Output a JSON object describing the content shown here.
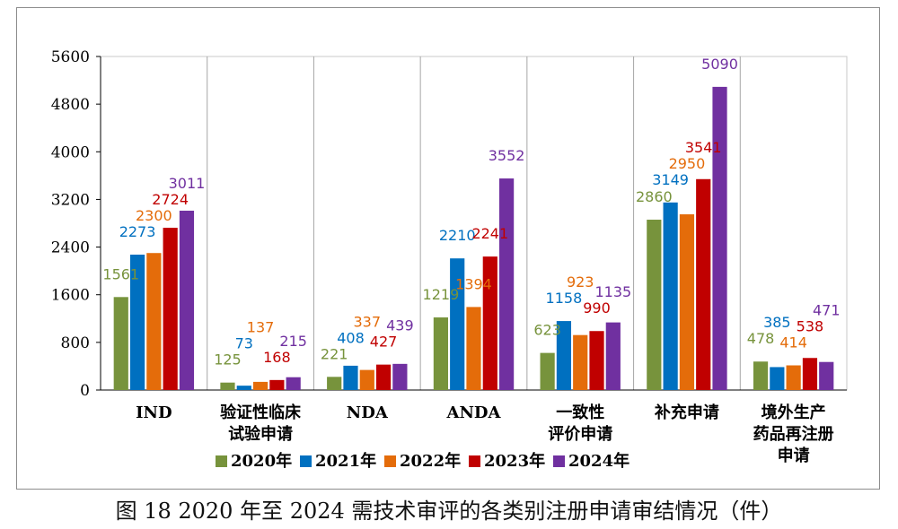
{
  "caption": "图 18 2020 年至 2024 需技术审评的各类别注册申请审结情况（件）",
  "chart_data": {
    "type": "bar",
    "title": "",
    "xlabel": "",
    "ylabel": "",
    "ylim": [
      0,
      5600
    ],
    "yticks": [
      0,
      800,
      1600,
      2400,
      3200,
      4000,
      4800,
      5600
    ],
    "grid": "vertical separators between categories",
    "legend_position": "bottom",
    "categories": [
      [
        "IND"
      ],
      [
        "验证性临床",
        "试验申请"
      ],
      [
        "NDA"
      ],
      [
        "ANDA"
      ],
      [
        "一致性",
        "评价申请"
      ],
      [
        "补充申请"
      ],
      [
        "境外生产",
        "药品再注册",
        "申请"
      ]
    ],
    "series": [
      {
        "name": "2020年",
        "color": "#77933c",
        "values": [
          1561,
          125,
          221,
          1219,
          623,
          2860,
          478
        ]
      },
      {
        "name": "2021年",
        "color": "#0070c0",
        "values": [
          2273,
          73,
          408,
          2210,
          1158,
          3149,
          385
        ]
      },
      {
        "name": "2022年",
        "color": "#e46c0a",
        "values": [
          2300,
          137,
          337,
          1394,
          923,
          2950,
          414
        ]
      },
      {
        "name": "2023年",
        "color": "#c00000",
        "values": [
          2724,
          168,
          427,
          2241,
          990,
          3541,
          538
        ]
      },
      {
        "name": "2024年",
        "color": "#7030a0",
        "values": [
          3011,
          215,
          439,
          3552,
          1135,
          5090,
          471
        ]
      }
    ]
  }
}
